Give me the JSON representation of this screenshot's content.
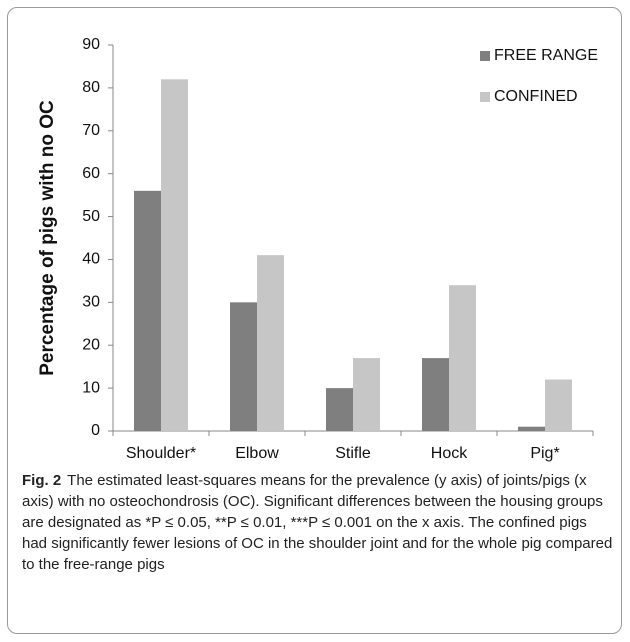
{
  "chart_data": {
    "type": "bar",
    "ylabel": "Percentage  of  pigs with  no  OC",
    "categories": [
      "Shoulder*",
      "Elbow",
      "Stifle",
      "Hock",
      "Pig*"
    ],
    "series": [
      {
        "name": "FREE RANGE",
        "color": "#7f7f7f",
        "values": [
          56,
          30,
          10,
          17,
          1
        ]
      },
      {
        "name": "CONFINED",
        "color": "#c6c6c6",
        "values": [
          82,
          41,
          17,
          34,
          12
        ]
      }
    ],
    "ylim": [
      0,
      90
    ],
    "yticks": [
      0,
      10,
      20,
      30,
      40,
      50,
      60,
      70,
      80,
      90
    ],
    "grid": false,
    "legend": "top-right"
  },
  "caption": {
    "label": "Fig. 2",
    "text": "The estimated least-squares means for the prevalence (y axis) of joints/pigs (x axis) with no osteochondrosis (OC). Significant differences between the housing groups are designated as *P ≤ 0.05, **P ≤ 0.01, ***P ≤ 0.001 on the x axis. The confined pigs had significantly fewer lesions of OC in the shoulder joint and for the whole pig compared to the free-range pigs"
  }
}
